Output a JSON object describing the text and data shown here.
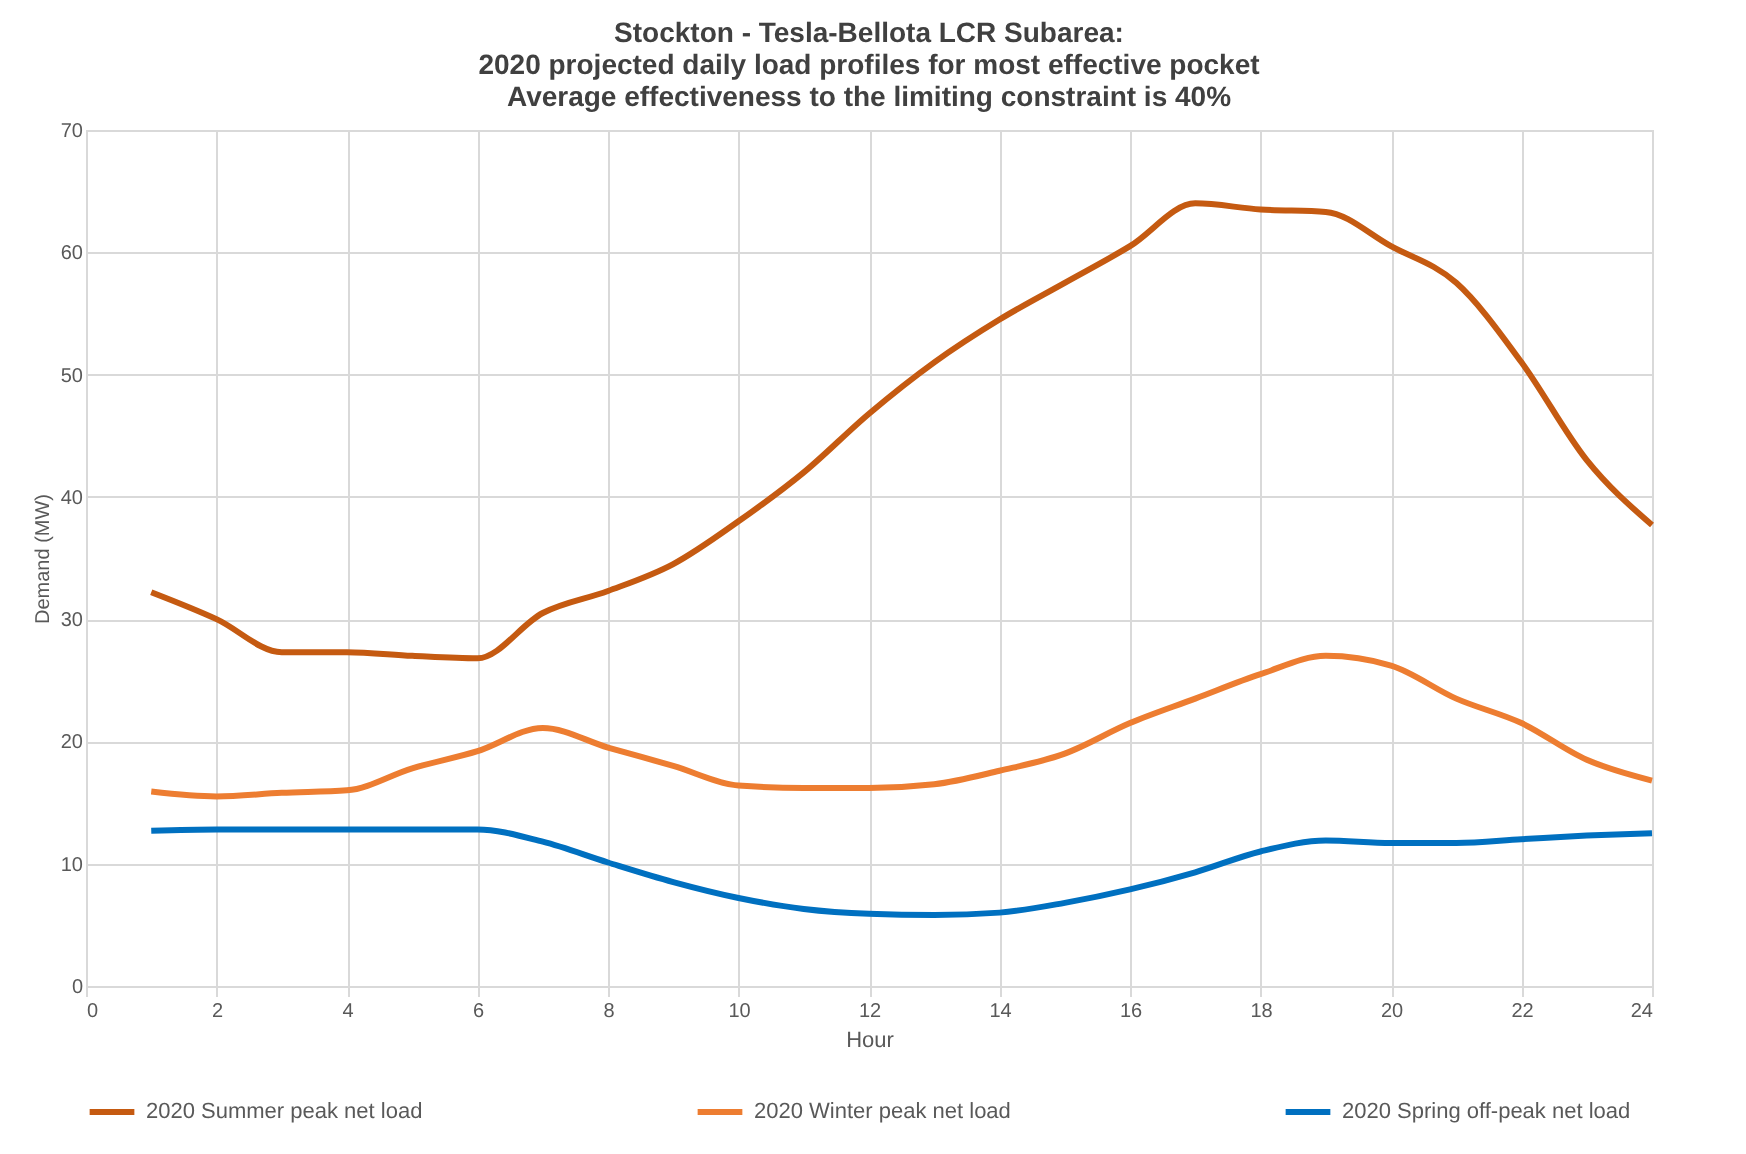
{
  "chart_data": {
    "type": "line",
    "title": [
      "Stockton - Tesla-Bellota LCR Subarea:",
      "2020 projected daily load profiles for most effective pocket",
      "Average effectiveness to the limiting constraint is 40%"
    ],
    "xlabel": "Hour",
    "ylabel": "Demand (MW)",
    "x": [
      1,
      2,
      3,
      4,
      5,
      6,
      7,
      8,
      9,
      10,
      11,
      12,
      13,
      14,
      15,
      16,
      17,
      18,
      19,
      20,
      21,
      22,
      23,
      24
    ],
    "series": [
      {
        "name": "2020 Summer peak net load",
        "color": "#c55a11",
        "values": [
          32.2,
          30,
          27.3,
          27.3,
          27,
          26.8,
          30.5,
          32.3,
          34.5,
          38,
          42,
          46.8,
          51,
          54.5,
          57.5,
          60.5,
          64,
          63.5,
          63.3,
          60.5,
          57.5,
          51,
          43,
          37.7
        ]
      },
      {
        "name": "2020 Winter peak net load",
        "color": "#ed7d31",
        "values": [
          15.9,
          15.5,
          15.8,
          16,
          17.8,
          19.2,
          21.1,
          19.5,
          18,
          16.4,
          16.2,
          16.2,
          16.5,
          17.6,
          19,
          21.5,
          23.5,
          25.5,
          27,
          26.2,
          23.5,
          21.5,
          18.5,
          16.8
        ]
      },
      {
        "name": "2020 Spring off-peak net load",
        "color": "#0070c0",
        "values": [
          12.7,
          12.8,
          12.8,
          12.8,
          12.8,
          12.8,
          11.8,
          10.1,
          8.5,
          7.2,
          6.3,
          5.9,
          5.8,
          6,
          6.8,
          7.9,
          9.3,
          11,
          11.9,
          11.7,
          11.7,
          12,
          12.3,
          12.5
        ]
      }
    ],
    "xlim": [
      0,
      24
    ],
    "xticks": [
      0,
      2,
      4,
      6,
      8,
      10,
      12,
      14,
      16,
      18,
      20,
      22,
      24
    ],
    "ylim": [
      0,
      70
    ],
    "yticks": [
      0,
      10,
      20,
      30,
      40,
      50,
      60,
      70
    ],
    "grid": true,
    "legend": "bottom",
    "marker": "none",
    "line_style": "solid"
  }
}
